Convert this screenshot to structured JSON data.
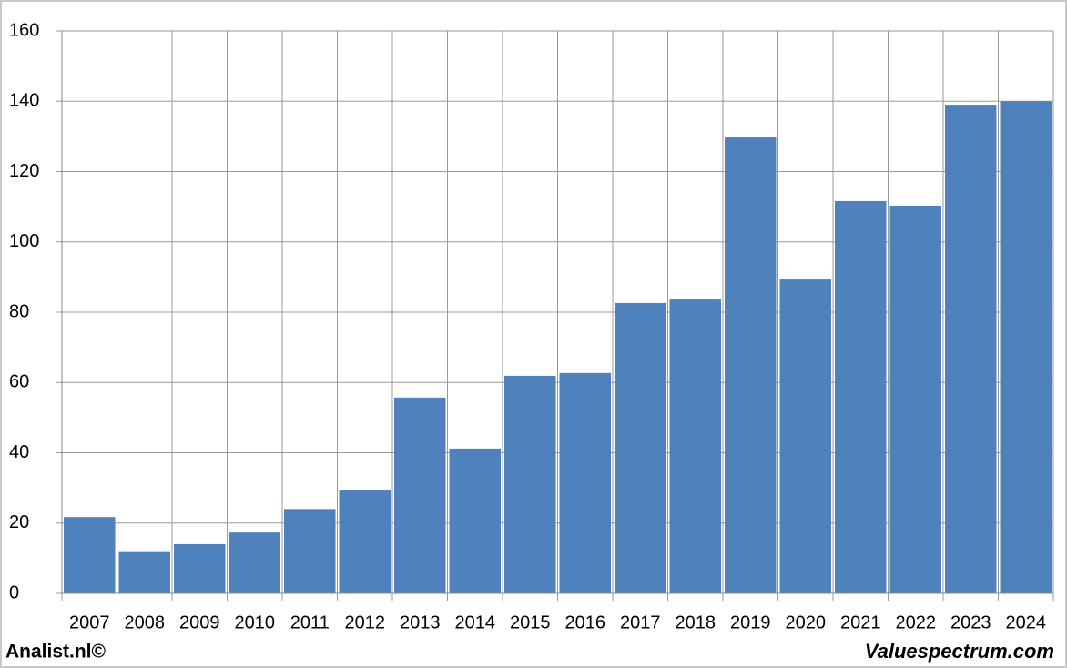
{
  "chart_data": {
    "type": "bar",
    "categories": [
      "2007",
      "2008",
      "2009",
      "2010",
      "2011",
      "2012",
      "2013",
      "2014",
      "2015",
      "2016",
      "2017",
      "2018",
      "2019",
      "2020",
      "2021",
      "2022",
      "2023",
      "2024"
    ],
    "values": [
      21.7,
      12,
      14,
      17.3,
      24,
      29.5,
      55.7,
      41.2,
      61.9,
      62.7,
      82.6,
      83.6,
      129.7,
      89.3,
      111.6,
      110.3,
      139,
      140
    ],
    "color": "#4f81bd",
    "ylim": [
      0,
      160
    ],
    "yticks": [
      0,
      20,
      40,
      60,
      80,
      100,
      120,
      140,
      160
    ],
    "grid": true,
    "credits": {
      "left": "Analist.nl©",
      "right": "Valuespectrum.com"
    }
  }
}
